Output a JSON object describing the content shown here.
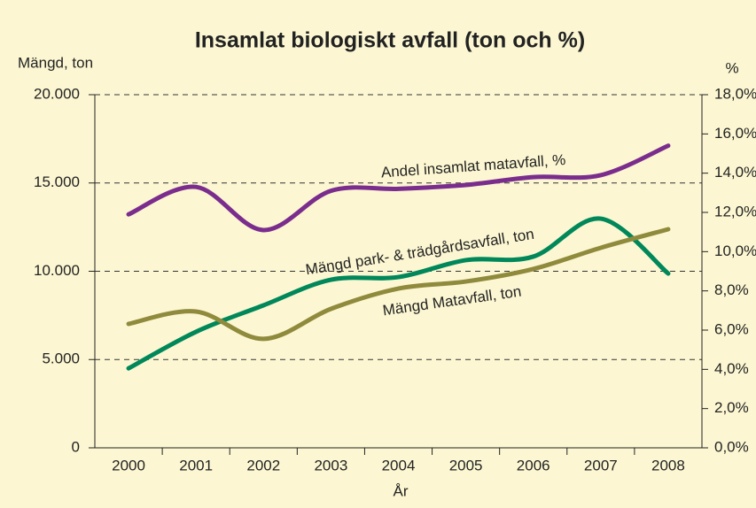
{
  "chart_data": {
    "type": "line",
    "title": "Insamlat biologiskt avfall (ton och %)",
    "y_label": "Mängd, ton",
    "y2_label": "%",
    "x_label": "År",
    "categories": [
      "2000",
      "2001",
      "2002",
      "2003",
      "2004",
      "2005",
      "2006",
      "2007",
      "2008"
    ],
    "series": [
      {
        "name": "Andel insamlat matavfall, %",
        "color": "#7b2d8e",
        "axis": "y2",
        "values": [
          11.9,
          13.3,
          11.1,
          13.1,
          13.2,
          13.4,
          13.8,
          13.9,
          15.4
        ]
      },
      {
        "name": "Mängd park- & trädgårdsavfall, ton",
        "color": "#00875a",
        "values": [
          4500,
          6570,
          8070,
          9520,
          9670,
          10630,
          10830,
          12980,
          9870
        ]
      },
      {
        "name": "Mängd Matavfall, ton",
        "color": "#8f8a3c",
        "values": [
          7020,
          7720,
          6170,
          7870,
          9020,
          9420,
          10130,
          11330,
          12380
        ]
      }
    ],
    "ylim": [
      0,
      20000
    ],
    "yticks": [
      0,
      {
        "value": 5000,
        "label": "5.000"
      },
      {
        "value": 10000,
        "label": "10.000"
      },
      {
        "value": 15000,
        "label": "15.000"
      },
      {
        "value": 20000,
        "label": "20.000"
      }
    ],
    "y2lim": [
      0,
      18
    ],
    "y2ticks": [
      {
        "value": 0,
        "label": "0,0%"
      },
      {
        "value": 2,
        "label": "2,0%"
      },
      {
        "value": 4,
        "label": "4,0%"
      },
      {
        "value": 6,
        "label": "6,0%"
      },
      {
        "value": 8,
        "label": "8,0%"
      },
      {
        "value": 10,
        "label": "10,0%"
      },
      {
        "value": 12,
        "label": "12,0%"
      },
      {
        "value": 14,
        "label": "14,0%"
      },
      {
        "value": 16,
        "label": "16,0%"
      },
      {
        "value": 18,
        "label": "18,0%"
      }
    ],
    "grid": true
  }
}
